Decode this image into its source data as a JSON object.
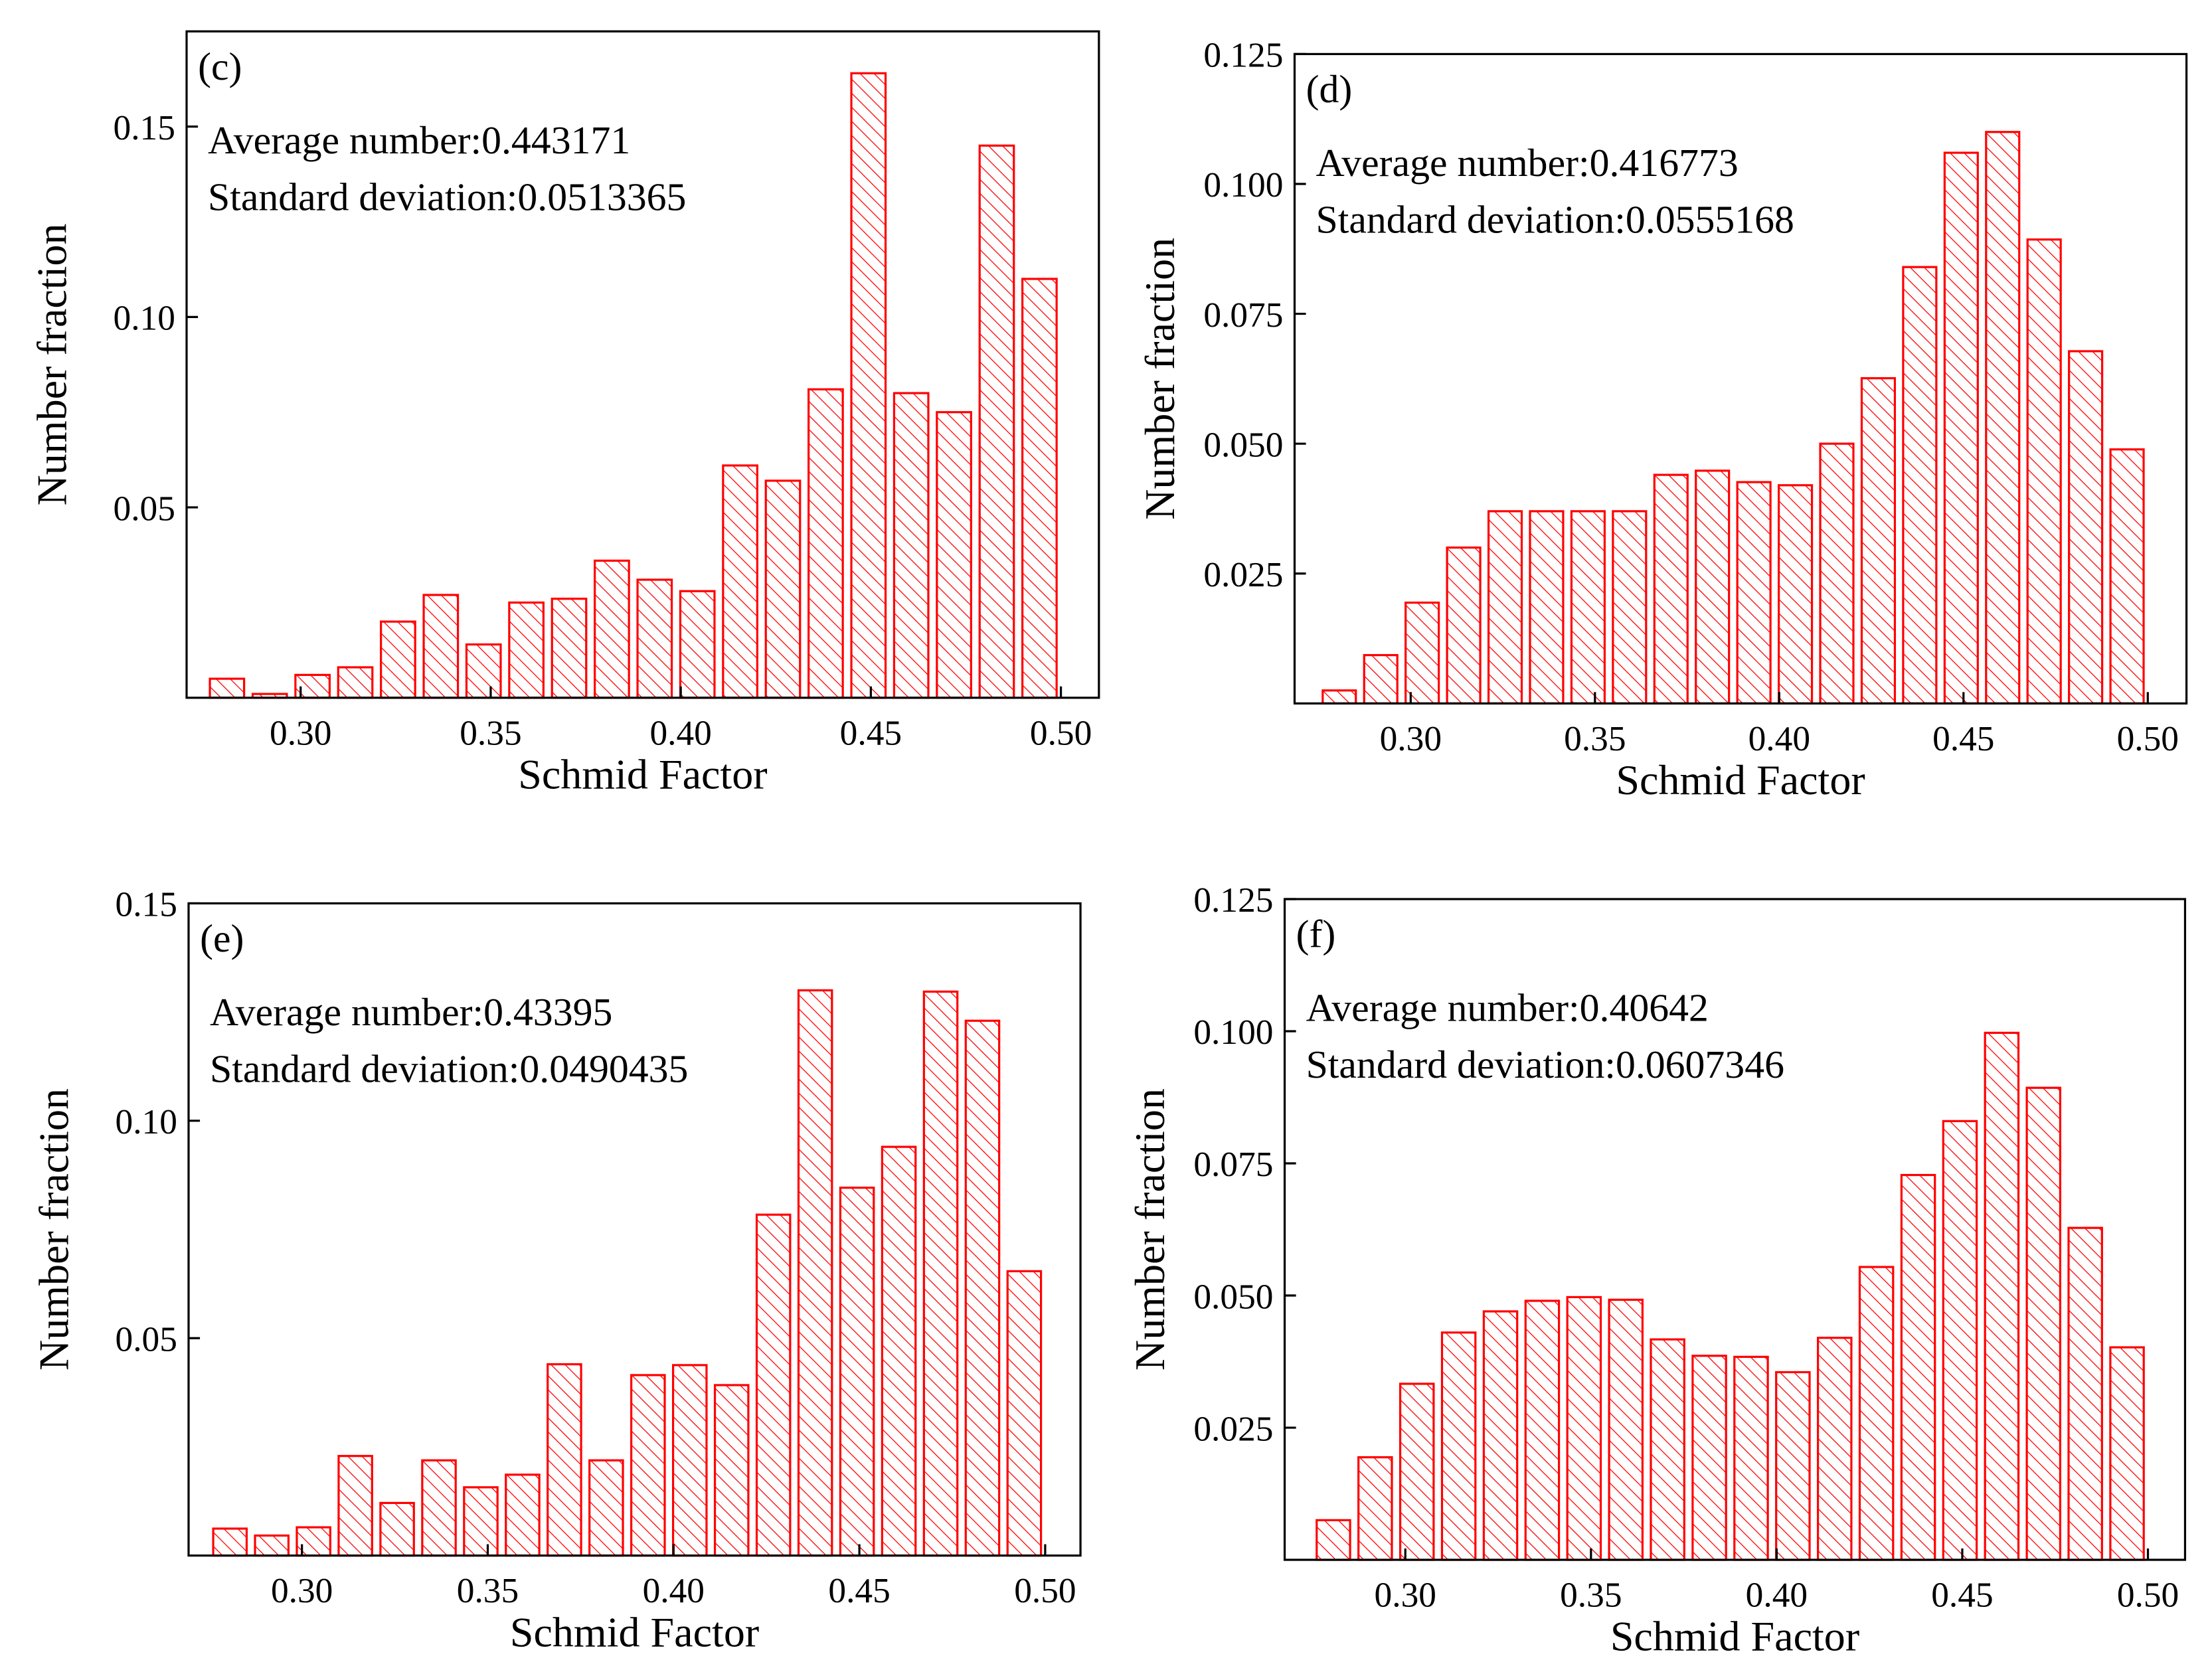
{
  "chart_data": [
    {
      "type": "histogram",
      "title": "(c)",
      "annotations": [
        "Average number:0.443171",
        "Standard deviation:0.0513365"
      ],
      "x_label": "Schmid Factor",
      "y_label": "Number fraction",
      "color": "#ff0000",
      "bins": [
        0.275,
        0.28625,
        0.2975,
        0.30875,
        0.32,
        0.33125,
        0.3425,
        0.35375,
        0.365,
        0.37625,
        0.3875,
        0.39875,
        0.41,
        0.42125,
        0.4325,
        0.44375,
        0.455,
        0.46625,
        0.4775,
        0.48875,
        0.5
      ],
      "values": [
        0.005,
        0.001,
        0.006,
        0.008,
        0.02,
        0.027,
        0.014,
        0.025,
        0.026,
        0.036,
        0.031,
        0.028,
        0.061,
        0.057,
        0.081,
        0.164,
        0.08,
        0.075,
        0.145,
        0.11
      ],
      "xlim": [
        0.27,
        0.51
      ],
      "ylim": [
        0,
        0.175
      ],
      "xticks": [
        {
          "value": 0.3,
          "label": "0.30"
        },
        0.35,
        {
          "value": 0.4,
          "label": "0.40"
        },
        0.45,
        {
          "value": 0.5,
          "label": "0.50"
        }
      ],
      "yticks": [
        0.05,
        {
          "value": 0.1,
          "label": "0.10"
        },
        0.15
      ]
    },
    {
      "type": "histogram",
      "title": "(d)",
      "annotations": [
        "Average number:0.416773",
        "Standard deviation:0.0555168"
      ],
      "x_label": "Schmid Factor",
      "y_label": "Number fraction",
      "color": "#ff0000",
      "bins": [
        0.275,
        0.28625,
        0.2975,
        0.30875,
        0.32,
        0.33125,
        0.3425,
        0.35375,
        0.365,
        0.37625,
        0.3875,
        0.39875,
        0.41,
        0.42125,
        0.4325,
        0.44375,
        0.455,
        0.46625,
        0.4775,
        0.48875,
        0.5
      ],
      "values": [
        0.0025,
        0.0093,
        0.0194,
        0.03,
        0.037,
        0.037,
        0.037,
        0.037,
        0.044,
        0.0448,
        0.0426,
        0.042,
        0.05,
        0.0626,
        0.084,
        0.106,
        0.11,
        0.0893,
        0.0678,
        0.0489
      ],
      "xlim": [
        0.2685,
        0.5105
      ],
      "ylim": [
        0,
        0.125
      ],
      "xticks": [
        {
          "value": 0.3,
          "label": "0.30"
        },
        0.35,
        {
          "value": 0.4,
          "label": "0.40"
        },
        0.45,
        {
          "value": 0.5,
          "label": "0.50"
        }
      ],
      "yticks": [
        0.025,
        {
          "value": 0.05,
          "label": "0.050"
        },
        0.075,
        {
          "value": 0.1,
          "label": "0.100"
        },
        0.125
      ]
    },
    {
      "type": "histogram",
      "title": "(e)",
      "annotations": [
        "Average number:0.43395",
        "Standard deviation:0.0490435"
      ],
      "x_label": "Schmid Factor",
      "y_label": "Number fraction",
      "color": "#ff0000",
      "bins": [
        0.275,
        0.28625,
        0.2975,
        0.30875,
        0.32,
        0.33125,
        0.3425,
        0.35375,
        0.365,
        0.37625,
        0.3875,
        0.39875,
        0.41,
        0.42125,
        0.4325,
        0.44375,
        0.455,
        0.46625,
        0.4775,
        0.48875,
        0.5
      ],
      "values": [
        0.0062,
        0.0046,
        0.0065,
        0.0229,
        0.0121,
        0.0219,
        0.0157,
        0.0186,
        0.044,
        0.0219,
        0.0415,
        0.0438,
        0.0392,
        0.0784,
        0.13,
        0.0846,
        0.094,
        0.1297,
        0.123,
        0.0654
      ],
      "xlim": [
        0.2695,
        0.5095
      ],
      "ylim": [
        0,
        0.15
      ],
      "xticks": [
        {
          "value": 0.3,
          "label": "0.30"
        },
        0.35,
        {
          "value": 0.4,
          "label": "0.40"
        },
        0.45,
        {
          "value": 0.5,
          "label": "0.50"
        }
      ],
      "yticks": [
        0.05,
        {
          "value": 0.1,
          "label": "0.10"
        },
        0.15
      ]
    },
    {
      "type": "histogram",
      "title": "(f)",
      "annotations": [
        "Average number:0.40642",
        "Standard deviation:0.0607346"
      ],
      "x_label": "Schmid Factor",
      "y_label": "Number fraction",
      "color": "#ff0000",
      "bins": [
        0.275,
        0.28625,
        0.2975,
        0.30875,
        0.32,
        0.33125,
        0.3425,
        0.35375,
        0.365,
        0.37625,
        0.3875,
        0.39875,
        0.41,
        0.42125,
        0.4325,
        0.44375,
        0.455,
        0.46625,
        0.4775,
        0.48875,
        0.5
      ],
      "values": [
        0.0075,
        0.0194,
        0.0333,
        0.043,
        0.047,
        0.049,
        0.0497,
        0.0492,
        0.0417,
        0.0386,
        0.0384,
        0.0355,
        0.042,
        0.0554,
        0.0728,
        0.083,
        0.0997,
        0.0893,
        0.0628,
        0.0402
      ],
      "xlim": [
        0.2675,
        0.51
      ],
      "ylim": [
        0,
        0.125
      ],
      "xticks": [
        {
          "value": 0.3,
          "label": "0.30"
        },
        0.35,
        {
          "value": 0.4,
          "label": "0.40"
        },
        0.45,
        {
          "value": 0.5,
          "label": "0.50"
        }
      ],
      "yticks": [
        0.025,
        {
          "value": 0.05,
          "label": "0.050"
        },
        0.075,
        {
          "value": 0.1,
          "label": "0.100"
        },
        0.125
      ]
    }
  ]
}
